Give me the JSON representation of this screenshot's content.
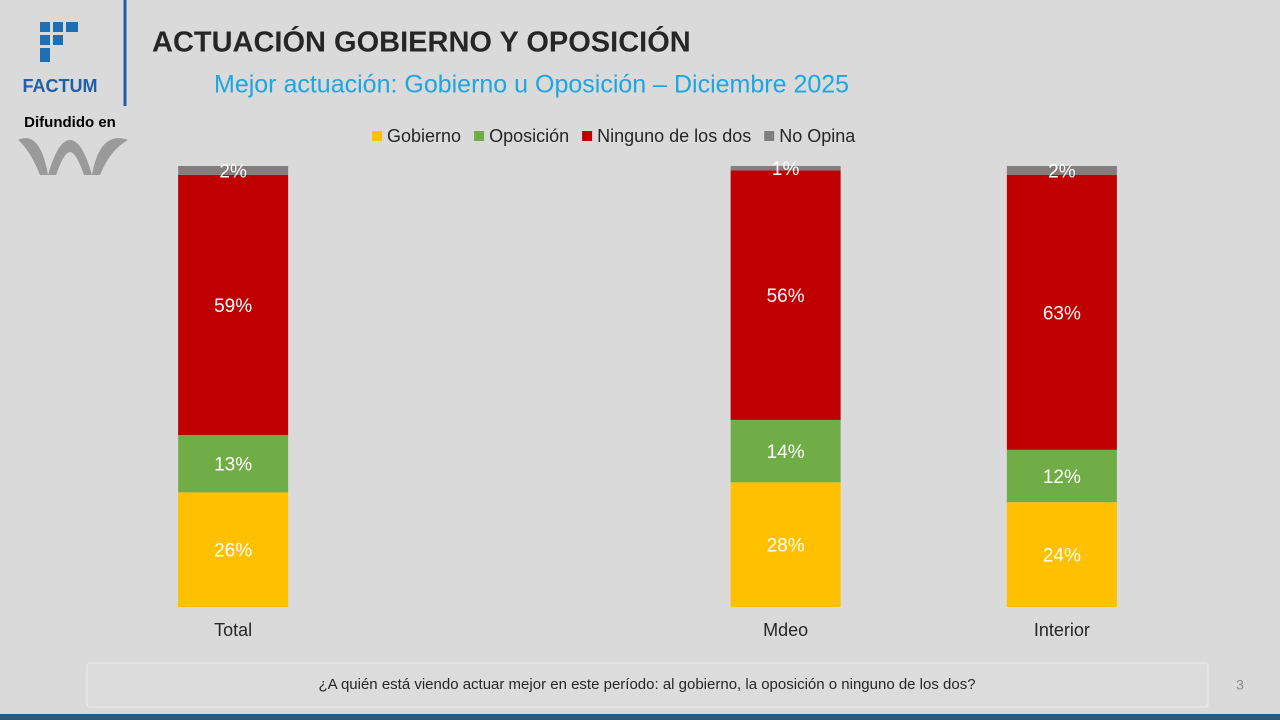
{
  "logo": {
    "name": "FACTUM",
    "caption": "Difundido en"
  },
  "page_number": 3,
  "chart_data": {
    "type": "bar",
    "stacked": "percent",
    "title": "ACTUACIÓN GOBIERNO Y OPOSICIÓN",
    "subtitle": "Mejor actuación: Gobierno u Oposición – Diciembre 2025",
    "note": "¿A quién está viendo actuar mejor en este período: al gobierno, la oposición o ninguno de los dos?",
    "legend": "top",
    "categories": [
      "Total",
      null,
      "Mdeo",
      "Interior"
    ],
    "series": [
      {
        "name": "Gobierno",
        "color": "#ffc000",
        "values": [
          26,
          null,
          28,
          24
        ],
        "value_labels": [
          "26%",
          null,
          "28%",
          "24%"
        ]
      },
      {
        "name": "Oposición",
        "color": "#70ad47",
        "values": [
          13,
          null,
          14,
          12
        ],
        "value_labels": [
          "13%",
          null,
          "14%",
          "12%"
        ]
      },
      {
        "name": "Ninguno de los dos",
        "color": "#c00000",
        "values": [
          59,
          null,
          56,
          63
        ],
        "value_labels": [
          "59%",
          null,
          "56%",
          "63%"
        ]
      },
      {
        "name": "No Opina",
        "color": "#7f7f7f",
        "values": [
          2,
          null,
          1,
          2
        ],
        "value_labels": [
          "2%",
          null,
          "1%",
          "2%"
        ]
      }
    ]
  }
}
